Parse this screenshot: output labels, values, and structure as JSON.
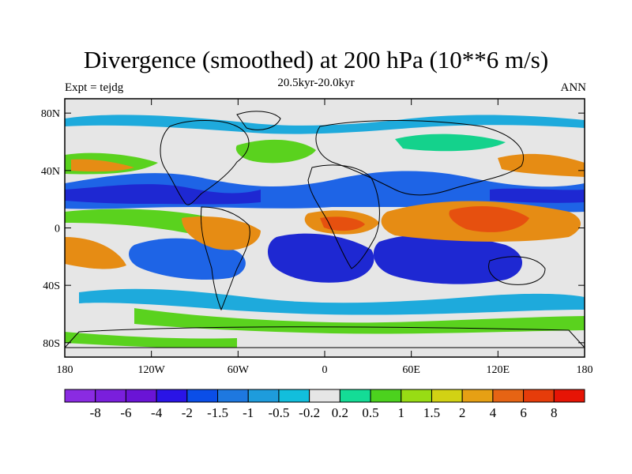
{
  "title": "Divergence (smoothed) at 200 hPa (10**6 m/s)",
  "subtitle": "20.5kyr-20.0kyr",
  "left_label": "Expt = tejdg",
  "right_label": "ANN",
  "lat_ticks": [
    "80N",
    "40N",
    "0",
    "40S",
    "80S"
  ],
  "lat_values": [
    80,
    40,
    0,
    -40,
    -80
  ],
  "lon_ticks": [
    "180",
    "120W",
    "60W",
    "0",
    "60E",
    "120E",
    "180"
  ],
  "lon_values": [
    -180,
    -120,
    -60,
    0,
    60,
    120,
    180
  ],
  "colorbar": {
    "labels": [
      "-8",
      "-6",
      "-4",
      "-2",
      "-1.5",
      "-1",
      "-0.5",
      "-0.2",
      "0.2",
      "0.5",
      "1",
      "1.5",
      "2",
      "4",
      "6",
      "8"
    ],
    "colors": [
      "#8a2be2",
      "#7a1fdc",
      "#6a14d6",
      "#2a14e6",
      "#0a4ee8",
      "#1e78e0",
      "#1e9cdc",
      "#12bedc",
      "#e6e6e6",
      "#14dc96",
      "#4cd21e",
      "#98dc14",
      "#d2d214",
      "#e6a014",
      "#e66414",
      "#e63c0a",
      "#e61405"
    ]
  },
  "colors": {
    "strong_neg": "#1e28d2",
    "neg": "#1e64e6",
    "weak_neg": "#1eaadc",
    "neutral": "#e6e6e6",
    "weak_pos": "#14d28c",
    "pos": "#5ad21e",
    "mid_pos": "#c8d214",
    "strong_pos": "#e68c14",
    "very_pos": "#e6500f"
  }
}
